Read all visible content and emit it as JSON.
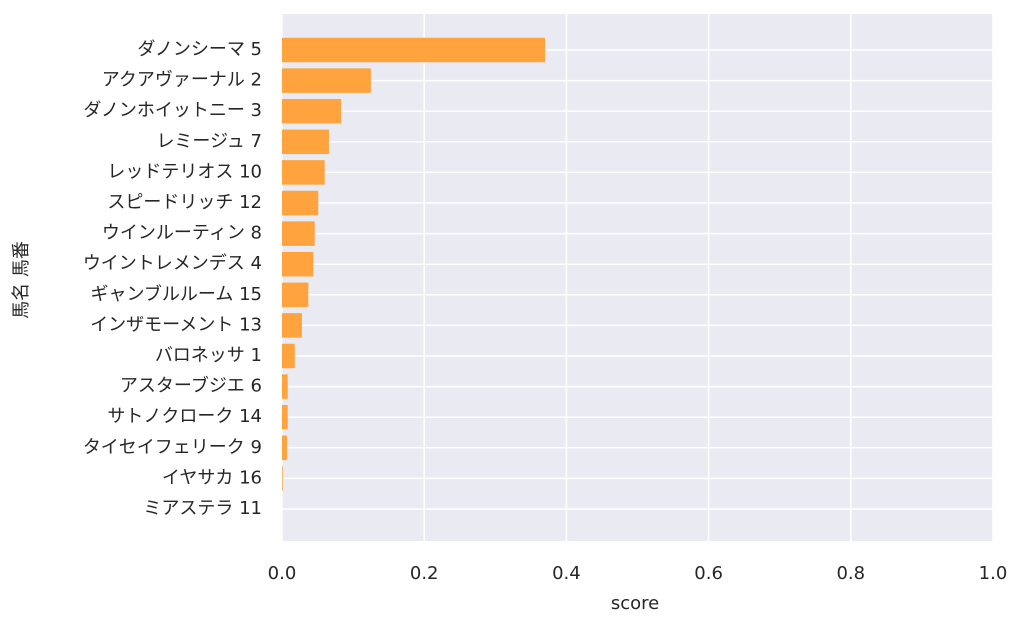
{
  "chart_data": {
    "type": "barh",
    "xlabel": "score",
    "ylabel": "馬名 馬番",
    "categories": [
      "ダノンシーマ 5",
      "アクアヴァーナル 2",
      "ダノンホイットニー 3",
      "レミージュ 7",
      "レッドテリオス 10",
      "スピードリッチ 12",
      "ウインルーティン 8",
      "ウイントレメンデス 4",
      "ギャンブルルーム 15",
      "インザモーメント 13",
      "バロネッサ 1",
      "アスターブジエ 6",
      "サトノクローク 14",
      "タイセイフェリーク 9",
      "イヤサカ 16",
      "ミアステラ 11"
    ],
    "values": [
      0.37,
      0.125,
      0.083,
      0.066,
      0.06,
      0.051,
      0.046,
      0.044,
      0.037,
      0.028,
      0.018,
      0.008,
      0.008,
      0.007,
      0.001,
      0
    ],
    "color": "#ff9f33",
    "xlim": [
      0,
      1
    ],
    "xticks": [
      {
        "value": 0,
        "label": "0.0"
      },
      0.2,
      0.4,
      0.6,
      0.8,
      {
        "value": 1,
        "label": "1.0"
      }
    ],
    "grid": true
  }
}
